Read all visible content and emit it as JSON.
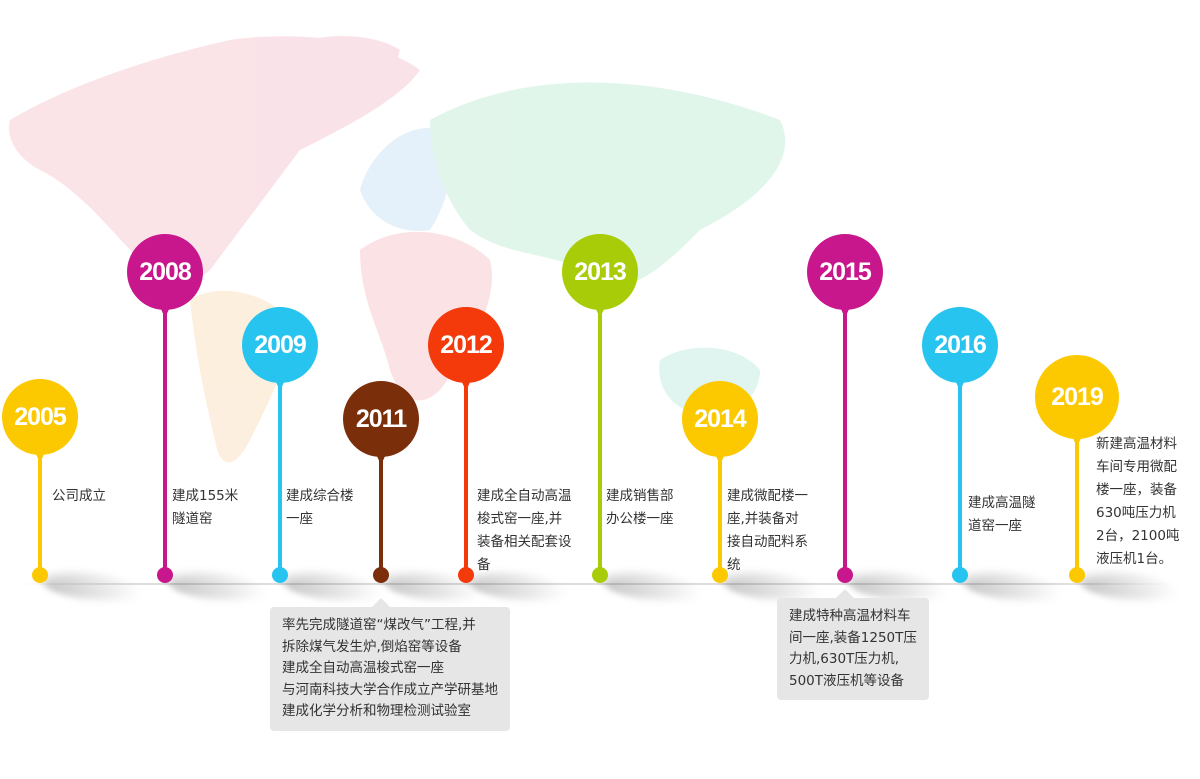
{
  "colors": {
    "yellow": "#fcc900",
    "magenta": "#c8168c",
    "cyan": "#27c4ef",
    "brown": "#7a2e0a",
    "red": "#f43a0a",
    "lime": "#a9cc08"
  },
  "milestones": [
    {
      "year": "2005",
      "color": "#fcc900",
      "text": "公司成立"
    },
    {
      "year": "2008",
      "color": "#c8168c",
      "text": "建成155米\n隧道窑"
    },
    {
      "year": "2009",
      "color": "#27c4ef",
      "text": "建成综合楼\n一座"
    },
    {
      "year": "2011",
      "color": "#7a2e0a",
      "text": "率先完成隧道窑“煤改气”工程,并\n拆除煤气发生炉,倒焰窑等设备\n建成全自动高温梭式窑一座\n与河南科技大学合作成立产学研基地\n建成化学分析和物理检测试验室"
    },
    {
      "year": "2012",
      "color": "#f43a0a",
      "text": "建成全自动高温\n梭式窑一座,并\n装备相关配套设\n备"
    },
    {
      "year": "2013",
      "color": "#a9cc08",
      "text": "建成销售部\n办公楼一座"
    },
    {
      "year": "2014",
      "color": "#fcc900",
      "text": "建成微配楼一\n座,并装备对\n接自动配料系\n统"
    },
    {
      "year": "2015",
      "color": "#c8168c",
      "text": "建成特种高温材料车\n间一座,装备1250T压\n力机,630T压力机,\n500T液压机等设备"
    },
    {
      "year": "2016",
      "color": "#27c4ef",
      "text": "建成高温隧\n道窑一座"
    },
    {
      "year": "2019",
      "color": "#fcc900",
      "text": "新建高温材料\n车间专用微配\n楼一座，装备\n630吨压力机\n2台，2100吨\n液压机1台。"
    }
  ]
}
